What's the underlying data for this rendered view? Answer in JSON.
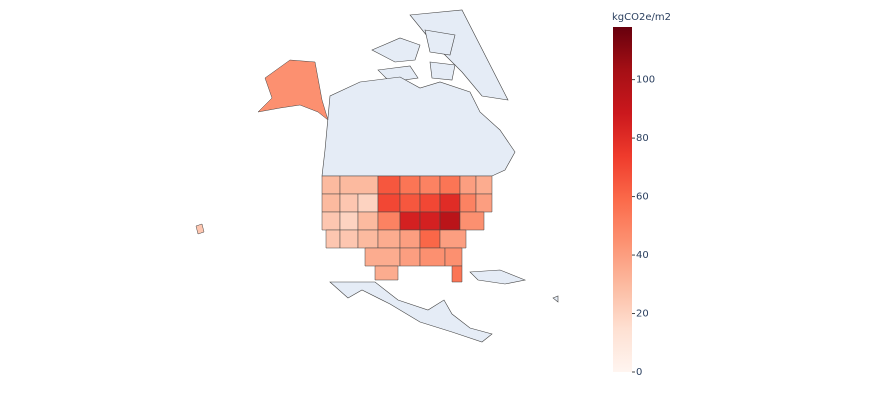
{
  "chart_data": {
    "type": "choropleth",
    "colorbar": {
      "title": "kgCO2e/m2",
      "range": [
        0,
        118
      ],
      "ticks": [
        0,
        20,
        40,
        60,
        80,
        100
      ],
      "colorscale": [
        "#fff5f0",
        "#fee0d2",
        "#fcbba1",
        "#fc9272",
        "#fb6a4a",
        "#ef3b2c",
        "#cb181d",
        "#a50f15",
        "#67000d"
      ]
    },
    "values": [
      30,
      30,
      65,
      55,
      50,
      55,
      40,
      35,
      30,
      25,
      20,
      70,
      65,
      70,
      80,
      50,
      40,
      25,
      20,
      30,
      50,
      85,
      85,
      95,
      45,
      25,
      25,
      30,
      35,
      40,
      60,
      40,
      35,
      40,
      45,
      45,
      35,
      55,
      45,
      25
    ]
  }
}
